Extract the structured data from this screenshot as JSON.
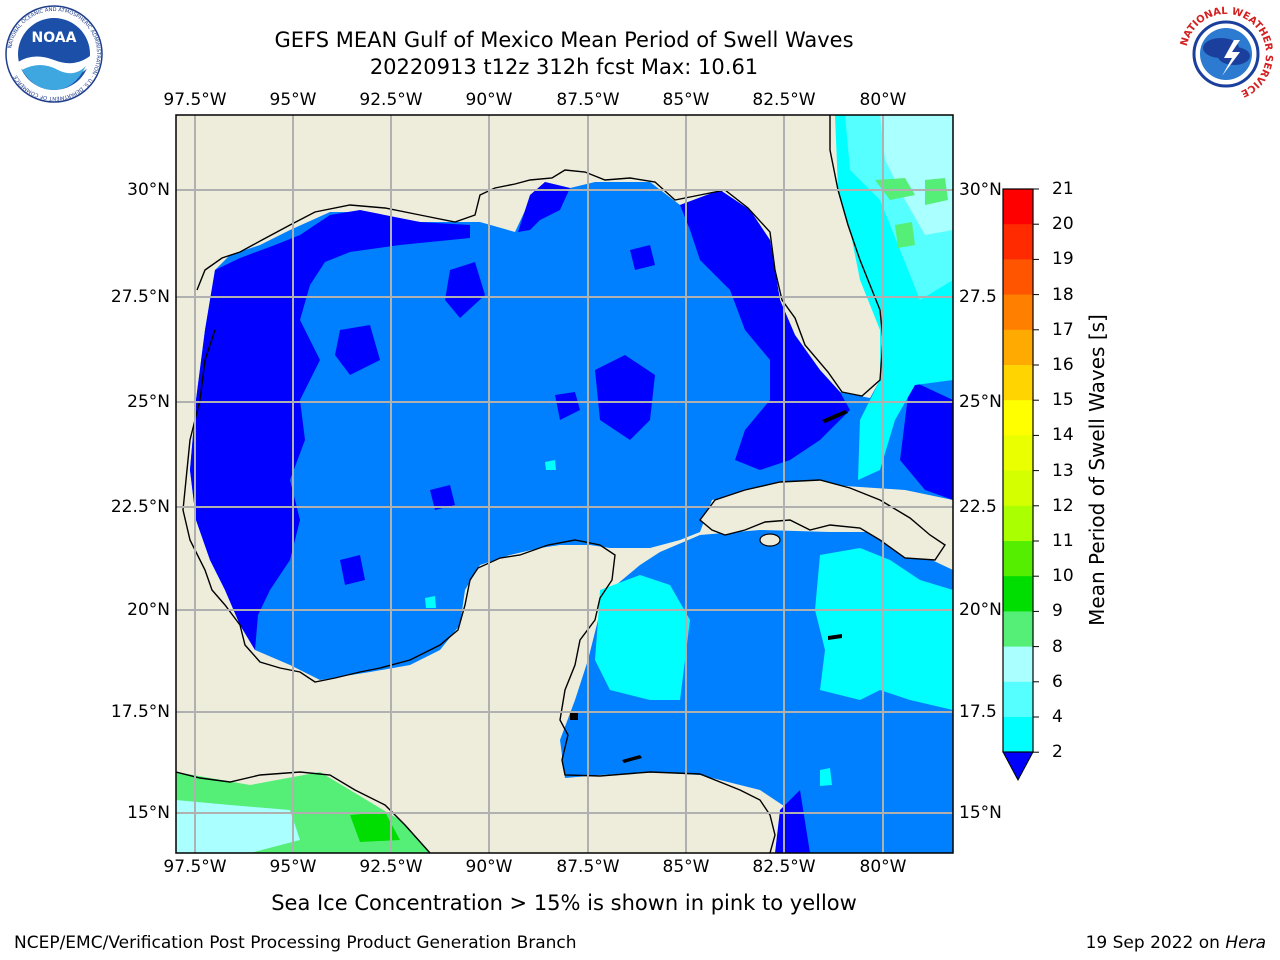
{
  "header": {
    "title_line1": "GEFS MEAN Gulf of Mexico Mean Period of Swell Waves",
    "title_line2": "20220913 t12z 312h fcst   Max: 10.61"
  },
  "map": {
    "lon_ticks": [
      "97.5°W",
      "95°W",
      "92.5°W",
      "90°W",
      "87.5°W",
      "85°W",
      "82.5°W",
      "80°W"
    ],
    "lat_ticks_left": [
      "30°N",
      "27.5°N",
      "25°N",
      "22.5°N",
      "20°N",
      "17.5°N",
      "15°N"
    ],
    "lat_ticks_right": [
      "30°N",
      "27.5",
      "25°N",
      "22.5",
      "20°N",
      "17.5",
      "15°N"
    ],
    "land_color": "#eeeddc",
    "grid_color": "#b0b0b0"
  },
  "colorbar": {
    "title": "Mean Period of Swell Waves [s]",
    "labels": [
      "21",
      "20",
      "19",
      "18",
      "17",
      "16",
      "15",
      "14",
      "13",
      "12",
      "11",
      "10",
      "9",
      "8",
      "6",
      "4",
      "2"
    ],
    "colors": [
      "#ff0000",
      "#ff2a00",
      "#ff5500",
      "#ff7f00",
      "#ffaa00",
      "#ffd400",
      "#ffff00",
      "#eaff00",
      "#d4ff00",
      "#aaff00",
      "#55ee00",
      "#00dd00",
      "#55ee77",
      "#aaffff",
      "#55ffff",
      "#00ffff",
      "#0080ff",
      "#0000ff"
    ]
  },
  "subtitle": "Sea Ice Concentration > 15% is shown in pink to yellow",
  "footer": {
    "left": "NCEP/EMC/Verification Post Processing Product Generation Branch",
    "date": "19 Sep 2022 on",
    "host": "Hera"
  },
  "logos": {
    "noaa": "NOAA",
    "noaa_ring": "NATIONAL OCEANIC AND ATMOSPHERIC ADMINISTRATION · U.S. DEPARTMENT OF COMMERCE",
    "nws_ring": "NATIONAL WEATHER SERVICE"
  }
}
